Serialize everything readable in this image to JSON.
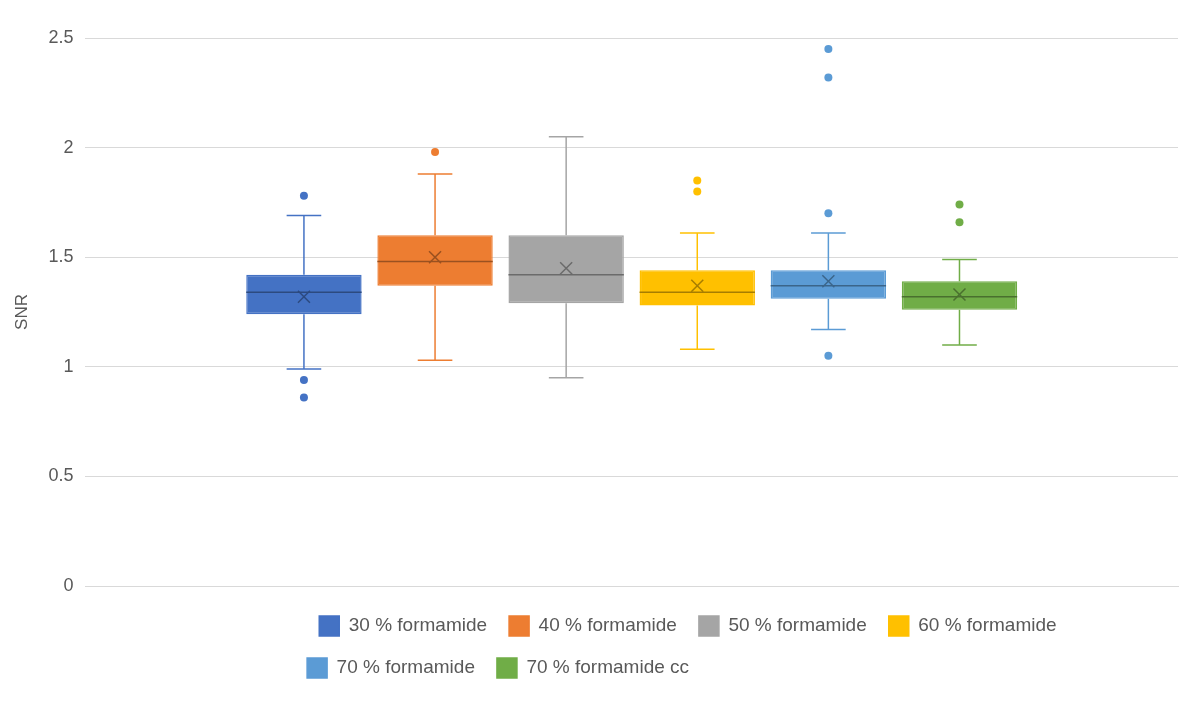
{
  "chart_data": {
    "type": "box",
    "ylabel": "SNR",
    "categories": [
      null
    ],
    "series": [
      {
        "name": "30 % formamide",
        "color": "#4472c4",
        "boxes": [
          {
            "low": 0.99,
            "q1": 1.24,
            "median": 1.34,
            "q3": 1.42,
            "high": 1.69,
            "mean": 1.32,
            "outliers": [
              1.78,
              0.94,
              0.86
            ]
          }
        ]
      },
      {
        "name": "40 % formamide",
        "color": "#ed7d31",
        "boxes": [
          {
            "low": 1.03,
            "q1": 1.37,
            "median": 1.48,
            "q3": 1.6,
            "high": 1.88,
            "mean": 1.5,
            "outliers": [
              1.98
            ]
          }
        ]
      },
      {
        "name": "50 % formamide",
        "color": "#a5a5a5",
        "boxes": [
          {
            "low": 0.95,
            "q1": 1.29,
            "median": 1.42,
            "q3": 1.6,
            "high": 2.05,
            "mean": 1.45
          }
        ]
      },
      {
        "name": "60 % formamide",
        "color": "#ffc000",
        "boxes": [
          {
            "low": 1.08,
            "q1": 1.28,
            "median": 1.34,
            "q3": 1.44,
            "high": 1.61,
            "mean": 1.37,
            "outliers": [
              1.85,
              1.8
            ]
          }
        ]
      },
      {
        "name": "70 % formamide",
        "color": "#5b9bd5",
        "boxes": [
          {
            "low": 1.17,
            "q1": 1.31,
            "median": 1.37,
            "q3": 1.44,
            "high": 1.61,
            "mean": 1.39,
            "outliers": [
              2.45,
              2.32,
              1.7,
              1.05
            ]
          }
        ]
      },
      {
        "name": "70 % formamide cc",
        "color": "#70ad47",
        "boxes": [
          {
            "low": 1.1,
            "q1": 1.26,
            "median": 1.32,
            "q3": 1.39,
            "high": 1.49,
            "mean": 1.33,
            "outliers": [
              1.74,
              1.66
            ]
          }
        ]
      }
    ],
    "ylim": [
      0,
      2.5
    ],
    "yticks": [
      0,
      0.5,
      1,
      1.5,
      2,
      2.5
    ],
    "grid": "y",
    "legend": "bottom"
  }
}
